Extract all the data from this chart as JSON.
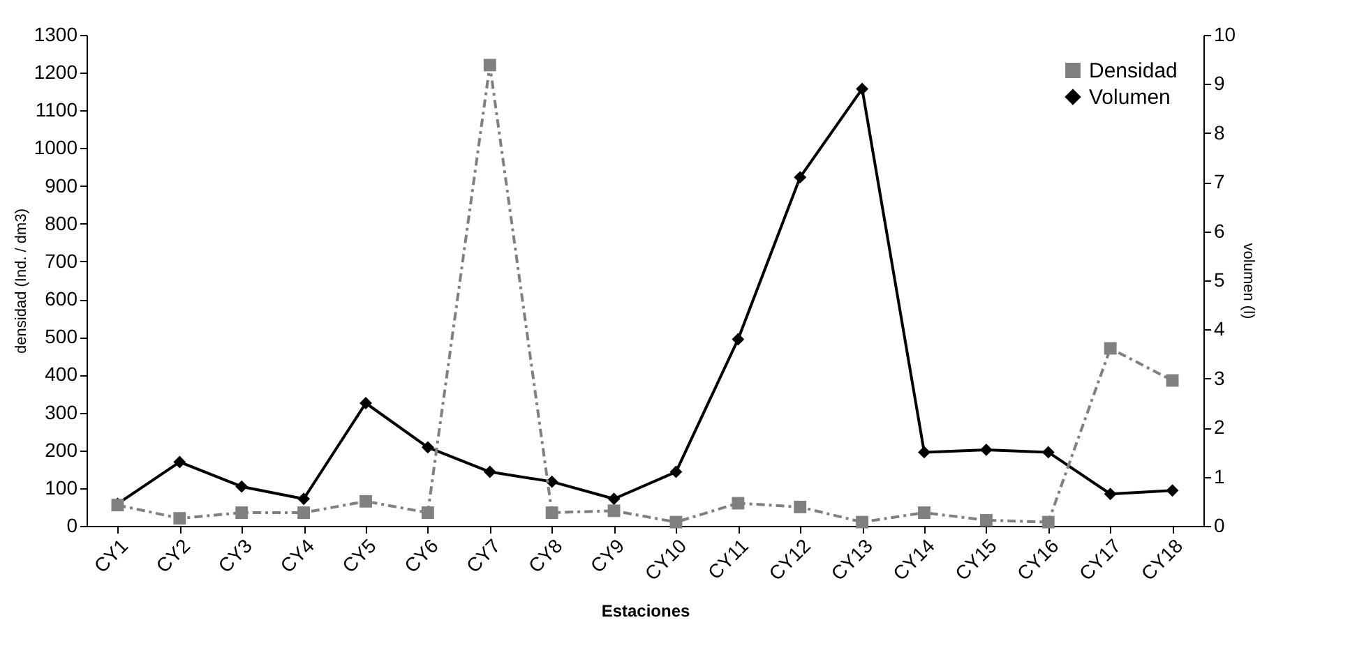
{
  "chart_data": {
    "type": "line",
    "xlabel": "Estaciones",
    "ylabel": "densidad (Ind. / dm3)",
    "y2label": "volumen (l)",
    "categories": [
      "CY1",
      "CY2",
      "CY3",
      "CY4",
      "CY5",
      "CY6",
      "CY7",
      "CY8",
      "CY9",
      "CY10",
      "CY11",
      "CY12",
      "CY13",
      "CY14",
      "CY15",
      "CY16",
      "CY17",
      "CY18"
    ],
    "series": [
      {
        "name": "Densidad",
        "color": "#808080",
        "marker": "square",
        "line_style": "dashdot",
        "values": [
          55,
          20,
          35,
          35,
          65,
          35,
          1220,
          35,
          40,
          10,
          60,
          50,
          10,
          35,
          15,
          10,
          470,
          385
        ]
      },
      {
        "name": "Volumen",
        "color": "#000000",
        "marker": "diamond",
        "line_style": "solid",
        "axis": "y2",
        "values": [
          0.45,
          1.3,
          0.8,
          0.55,
          2.5,
          1.6,
          1.1,
          0.9,
          0.55,
          1.1,
          3.8,
          7.1,
          8.9,
          1.5,
          1.55,
          1.5,
          0.65,
          0.72
        ]
      }
    ],
    "ylim": [
      0,
      1300
    ],
    "yticks": [
      0,
      100,
      200,
      300,
      400,
      500,
      600,
      700,
      800,
      900,
      1000,
      1100,
      1200,
      1300
    ],
    "y2lim": [
      0,
      10
    ],
    "y2ticks": [
      0,
      1,
      2,
      3,
      4,
      5,
      6,
      7,
      8,
      9,
      10
    ],
    "grid": false,
    "legend": "top right"
  }
}
